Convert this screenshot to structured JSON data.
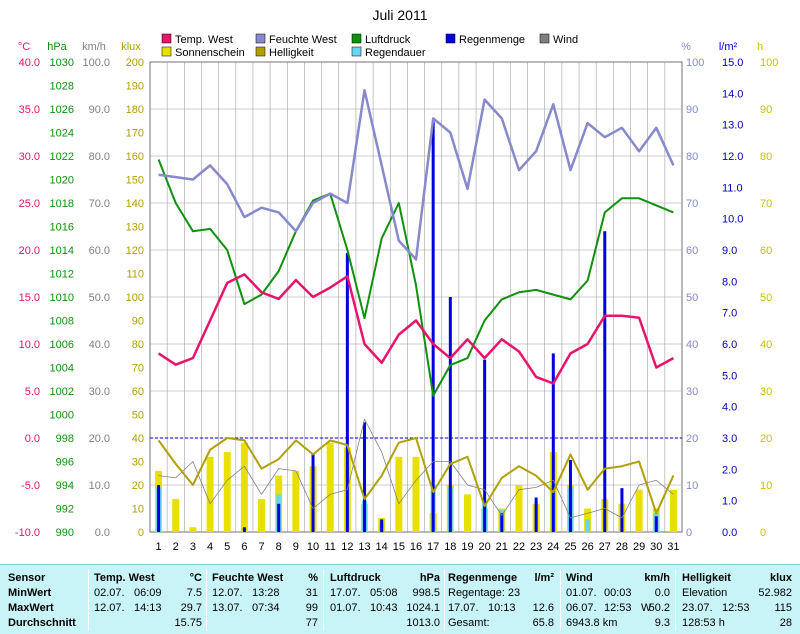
{
  "chart_data": {
    "type": "line",
    "title": "Juli 2011",
    "x": [
      1,
      2,
      3,
      4,
      5,
      6,
      7,
      8,
      9,
      10,
      11,
      12,
      13,
      14,
      15,
      16,
      17,
      18,
      19,
      20,
      21,
      22,
      23,
      24,
      25,
      26,
      27,
      28,
      29,
      30,
      31
    ],
    "x_ticks": [
      "1",
      "2",
      "3",
      "4",
      "5",
      "6",
      "7",
      "8",
      "9",
      "10",
      "11",
      "12",
      "13",
      "14",
      "15",
      "16",
      "17",
      "18",
      "19",
      "20",
      "21",
      "22",
      "23",
      "24",
      "25",
      "26",
      "27",
      "28",
      "29",
      "30",
      "31"
    ],
    "legend": [
      "Temp. West",
      "Sonnenschein",
      "Feuchte West",
      "Helligkeit",
      "Luftdruck",
      "Regendauer",
      "Regenmenge",
      "Wind"
    ],
    "axes": {
      "temp": {
        "unit": "°C",
        "min": -10,
        "max": 40,
        "ticks": [
          "40.0",
          "35.0",
          "30.0",
          "25.0",
          "20.0",
          "15.0",
          "10.0",
          "5.0",
          "0.0",
          "-5.0",
          "-10.0"
        ]
      },
      "pressure": {
        "unit": "hPa",
        "min": 990,
        "max": 1030,
        "ticks": [
          "1030",
          "1028",
          "1026",
          "1024",
          "1022",
          "1020",
          "1018",
          "1016",
          "1014",
          "1012",
          "1010",
          "1008",
          "1006",
          "1004",
          "1002",
          "1000",
          "998",
          "996",
          "994",
          "992",
          "990"
        ]
      },
      "wind": {
        "unit": "km/h",
        "min": 0,
        "max": 100,
        "ticks": [
          "100.0",
          "90.0",
          "80.0",
          "70.0",
          "60.0",
          "50.0",
          "40.0",
          "30.0",
          "20.0",
          "10.0",
          "0.0"
        ]
      },
      "brightness": {
        "unit": "klux",
        "min": 0,
        "max": 200,
        "ticks": [
          "200",
          "190",
          "180",
          "170",
          "160",
          "150",
          "140",
          "130",
          "120",
          "110",
          "100",
          "90",
          "80",
          "70",
          "60",
          "50",
          "40",
          "30",
          "20",
          "10",
          "0"
        ]
      },
      "humidity": {
        "unit": "%",
        "min": 0,
        "max": 100,
        "ticks": [
          "100",
          "90",
          "80",
          "70",
          "60",
          "50",
          "40",
          "30",
          "20",
          "10",
          "0"
        ]
      },
      "rain": {
        "unit": "l/m²",
        "min": 0,
        "max": 15,
        "ticks": [
          "15.0",
          "14.0",
          "13.0",
          "12.0",
          "11.0",
          "10.0",
          "9.0",
          "8.0",
          "7.0",
          "6.0",
          "5.0",
          "4.0",
          "3.0",
          "2.0",
          "1.0",
          "0.0"
        ]
      },
      "sun": {
        "unit": "h",
        "min": 0,
        "max": 100,
        "ticks": [
          "100",
          "90",
          "80",
          "70",
          "60",
          "50",
          "40",
          "30",
          "20",
          "10",
          "0"
        ]
      }
    },
    "series": [
      {
        "name": "Temp. West",
        "axis": "temp",
        "color": "#e8146c",
        "values": [
          9.0,
          7.8,
          8.5,
          12.5,
          16.5,
          17.4,
          15.5,
          14.8,
          16.8,
          15.0,
          16.0,
          17.2,
          10.0,
          8.0,
          11.0,
          12.5,
          10.0,
          8.5,
          10.5,
          8.5,
          10.5,
          9.2,
          6.5,
          5.8,
          9.0,
          10.0,
          13.0,
          13.0,
          12.8,
          7.5,
          8.5
        ]
      },
      {
        "name": "Feuchte West",
        "axis": "humidity",
        "color": "#8888cc",
        "values": [
          76,
          75.5,
          75,
          78,
          74,
          67,
          69,
          68,
          64,
          70,
          72,
          70,
          94,
          78,
          62,
          58,
          88,
          85,
          73,
          92,
          88,
          77,
          81,
          91,
          77,
          87,
          84,
          86,
          81,
          86,
          78
        ]
      },
      {
        "name": "Luftdruck",
        "axis": "pressure",
        "color": "#109010",
        "values": [
          1021.7,
          1018.0,
          1015.6,
          1015.8,
          1014.0,
          1009.4,
          1010.2,
          1012.2,
          1015.6,
          1018.2,
          1018.8,
          1014.0,
          1008.2,
          1015.0,
          1018.0,
          1011.0,
          1001.6,
          1004.2,
          1004.8,
          1008.0,
          1009.8,
          1010.4,
          1010.6,
          1010.2,
          1009.8,
          1011.4,
          1017.2,
          1018.4,
          1018.4,
          1017.8,
          1017.2
        ]
      },
      {
        "name": "Helligkeit",
        "axis": "brightness",
        "color": "#b0a000",
        "values": [
          39,
          29,
          20,
          35,
          40,
          39,
          27,
          31,
          39,
          33,
          39,
          37,
          14,
          24,
          38,
          40,
          17,
          29,
          32,
          11,
          23,
          28,
          24,
          17,
          33,
          18,
          27,
          28,
          30,
          8,
          24
        ]
      },
      {
        "name": "Wind",
        "axis": "wind",
        "color": "#808080",
        "values": [
          12.0,
          11.5,
          15.0,
          6.0,
          11.0,
          14.0,
          8.0,
          13.5,
          13.0,
          5.0,
          8.0,
          9.0,
          24.0,
          17.0,
          6.0,
          11.0,
          15.0,
          15.0,
          10.0,
          9.0,
          3.5,
          9.0,
          9.5,
          11.0,
          3.0,
          4.0,
          5.0,
          3.0,
          10.0,
          11.0,
          8.0
        ]
      }
    ],
    "bars": [
      {
        "name": "Sonnenschein",
        "axis": "sun",
        "color": "#e8e000",
        "values": [
          13,
          7,
          1,
          16,
          17,
          19,
          7,
          12,
          13,
          14,
          19,
          18,
          6,
          3,
          16,
          16,
          4,
          10,
          8,
          5,
          5,
          10,
          6,
          17,
          10,
          5,
          7,
          6,
          9,
          5,
          9
        ]
      },
      {
        "name": "Regenmenge",
        "axis": "rain",
        "color": "#0000e0",
        "values": [
          1.5,
          0,
          0,
          0,
          0,
          0.15,
          0,
          0.9,
          0,
          2.5,
          0,
          8.9,
          3.5,
          0.4,
          0,
          0,
          13.1,
          7.5,
          0,
          5.5,
          0.6,
          0,
          1.1,
          5.7,
          2.3,
          0,
          9.6,
          1.4,
          0,
          0.5,
          0
        ]
      },
      {
        "name": "Regendauer",
        "axis": "rain",
        "color": "#6ad4f4",
        "values": [
          1.4,
          0,
          0,
          0,
          0,
          0,
          0,
          1.2,
          0,
          0,
          0,
          0,
          1.0,
          0.3,
          0,
          0,
          1.5,
          1.4,
          0,
          1.0,
          0.7,
          0,
          0,
          1.5,
          1.4,
          0.4,
          0,
          0,
          0,
          0.6,
          0
        ]
      }
    ],
    "ref_line": {
      "axis": "rain",
      "value": 3.0,
      "color": "#0000c0"
    }
  },
  "colors": {
    "grid": "#a0a0a0",
    "axis_frame": "#707070",
    "stats_bg": "#c8f4f8"
  },
  "stats": {
    "row_labels": [
      "Sensor",
      "MinWert",
      "MaxWert",
      "Durchschnitt"
    ],
    "temp": {
      "title": "Temp. West",
      "unit": "°C",
      "min_date": "02.07.",
      "min_time": "06:09",
      "min_val": "7.5",
      "max_date": "12.07.",
      "max_time": "14:13",
      "max_val": "29.7",
      "avg": "15.75"
    },
    "hum": {
      "title": "Feuchte West",
      "unit": "%",
      "min_date": "12.07.",
      "min_time": "13:28",
      "min_val": "31",
      "max_date": "13.07.",
      "max_time": "07:34",
      "max_val": "99",
      "avg": "77"
    },
    "press": {
      "title": "Luftdruck",
      "unit": "hPa",
      "min_date": "17.07.",
      "min_time": "05:08",
      "min_val": "998.5",
      "max_date": "01.07.",
      "max_time": "10:43",
      "max_val": "1024.1",
      "avg": "1013.0"
    },
    "rain": {
      "title": "Regenmenge",
      "unit": "l/m²",
      "days": "Regentage: 23",
      "max_date": "17.07.",
      "max_time": "10:13",
      "max_val": "12.6",
      "total_label": "Gesamt:",
      "total": "65.8"
    },
    "wind": {
      "title": "Wind",
      "unit": "km/h",
      "min_date": "01.07.",
      "min_time": "00:03",
      "min_val": "0.0",
      "max_date": "06.07.",
      "max_time": "12:53",
      "max_dir": "W",
      "max_val": "50.2",
      "dist": "6943.8 km",
      "avg": "9.3"
    },
    "light": {
      "title": "Helligkeit",
      "unit": "klux",
      "elev_label": "Elevation",
      "elev": "52.982",
      "max_date": "23.07.",
      "max_time": "12:53",
      "max_val": "115",
      "sun_hours": "128:53 h",
      "sun_val": "28"
    }
  }
}
